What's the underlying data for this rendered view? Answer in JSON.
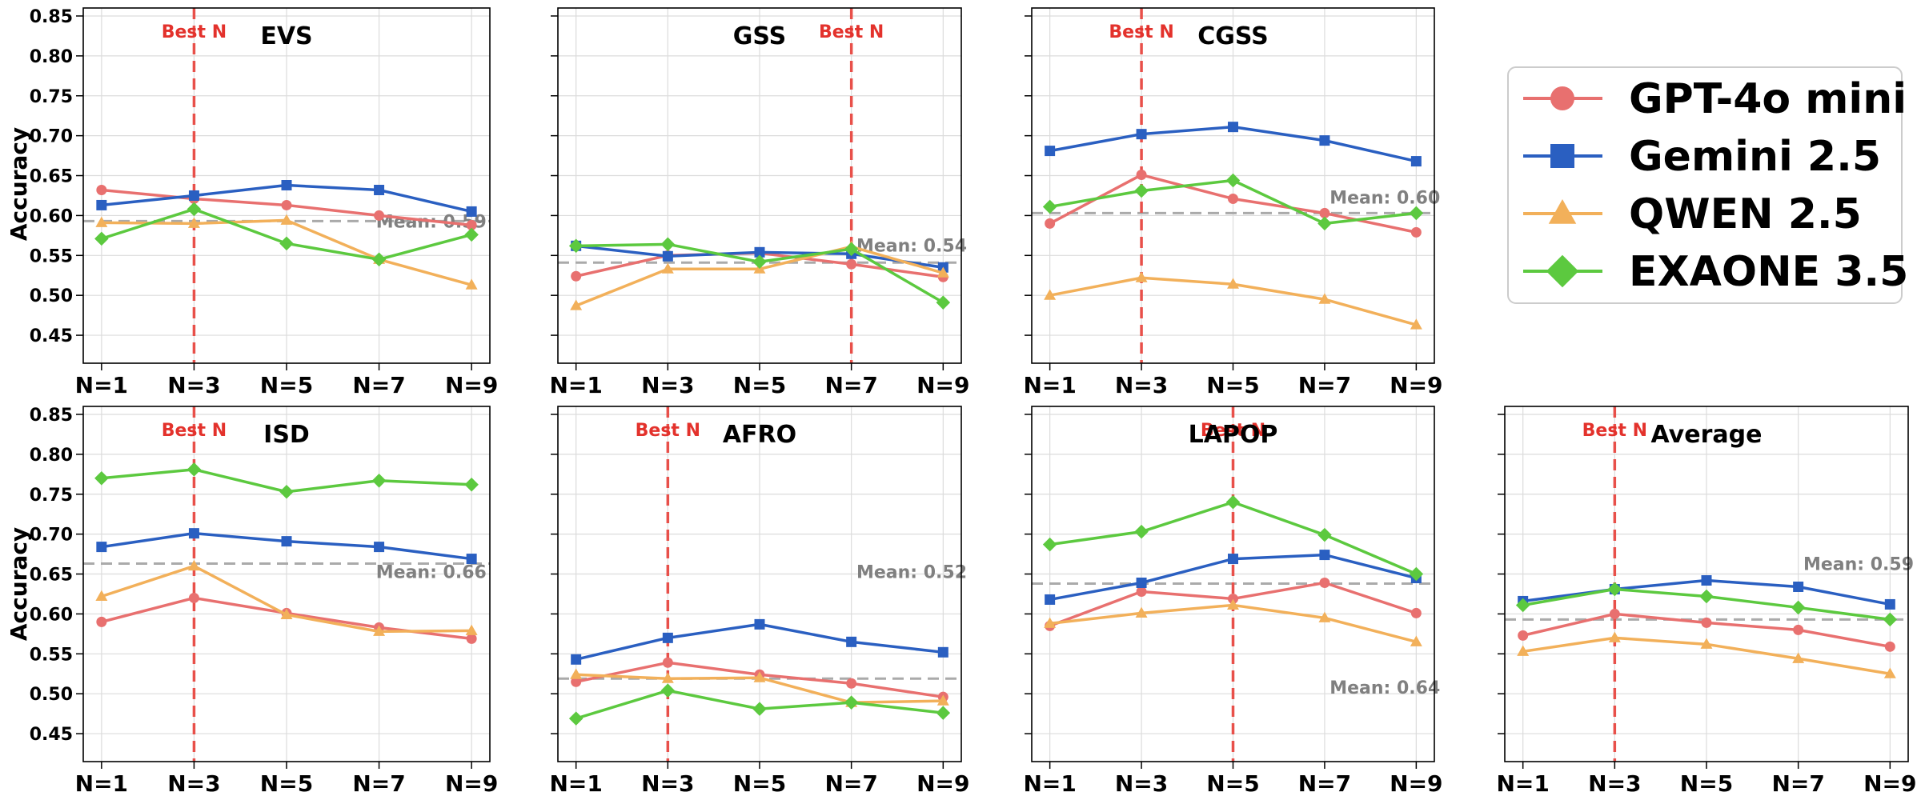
{
  "chart_data": {
    "type": "line",
    "ylabel": "Accuracy",
    "categories": [
      "N=1",
      "N=3",
      "N=5",
      "N=7",
      "N=9"
    ],
    "ylim": [
      0.415,
      0.86
    ],
    "yticks": [
      "0.45",
      "0.50",
      "0.55",
      "0.60",
      "0.65",
      "0.70",
      "0.75",
      "0.80",
      "0.85"
    ],
    "ytick_values": [
      0.45,
      0.5,
      0.55,
      0.6,
      0.65,
      0.7,
      0.75,
      0.8,
      0.85
    ],
    "grid": true,
    "best_label": "Best N",
    "colors": {
      "gpt": "#e8706f",
      "gemini": "#2a5fc1",
      "qwen": "#f2b05a",
      "exaone": "#5cc93f",
      "best_line": "#e8504a",
      "mean_line": "#aaaaaa"
    },
    "legend": [
      {
        "name": "GPT-4o mini",
        "marker": "circle",
        "color": "#e8706f"
      },
      {
        "name": "Gemini 2.5",
        "marker": "square",
        "color": "#2a5fc1"
      },
      {
        "name": "QWEN 2.5",
        "marker": "triangle",
        "color": "#f2b05a"
      },
      {
        "name": "EXAONE 3.5",
        "marker": "diamond",
        "color": "#5cc93f"
      }
    ],
    "panels": [
      {
        "title": "EVS",
        "best_n": "N=3",
        "mean": 0.593,
        "mean_label": "Mean: 0.59",
        "series": [
          {
            "name": "GPT-4o mini",
            "values": [
              0.632,
              0.621,
              0.613,
              0.6,
              0.588
            ]
          },
          {
            "name": "Gemini 2.5",
            "values": [
              0.613,
              0.625,
              0.638,
              0.632,
              0.605
            ]
          },
          {
            "name": "QWEN 2.5",
            "values": [
              0.591,
              0.59,
              0.594,
              0.545,
              0.513
            ]
          },
          {
            "name": "EXAONE 3.5",
            "values": [
              0.571,
              0.608,
              0.565,
              0.545,
              0.576
            ]
          }
        ]
      },
      {
        "title": "GSS",
        "best_n": "N=7",
        "mean": 0.541,
        "mean_label": "Mean: 0.54",
        "series": [
          {
            "name": "GPT-4o mini",
            "values": [
              0.524,
              0.55,
              0.553,
              0.539,
              0.523
            ]
          },
          {
            "name": "Gemini 2.5",
            "values": [
              0.562,
              0.549,
              0.554,
              0.552,
              0.535
            ]
          },
          {
            "name": "QWEN 2.5",
            "values": [
              0.487,
              0.533,
              0.533,
              0.561,
              0.528
            ]
          },
          {
            "name": "EXAONE 3.5",
            "values": [
              0.562,
              0.564,
              0.542,
              0.558,
              0.491
            ]
          }
        ]
      },
      {
        "title": "CGSS",
        "best_n": "N=3",
        "mean": 0.603,
        "mean_label": "Mean: 0.60",
        "series": [
          {
            "name": "GPT-4o mini",
            "values": [
              0.59,
              0.651,
              0.621,
              0.603,
              0.579
            ]
          },
          {
            "name": "Gemini 2.5",
            "values": [
              0.681,
              0.702,
              0.711,
              0.694,
              0.668
            ]
          },
          {
            "name": "QWEN 2.5",
            "values": [
              0.5,
              0.522,
              0.514,
              0.495,
              0.463
            ]
          },
          {
            "name": "EXAONE 3.5",
            "values": [
              0.611,
              0.631,
              0.644,
              0.59,
              0.603
            ]
          }
        ]
      },
      {
        "title": "ISD",
        "best_n": "N=3",
        "mean": 0.663,
        "mean_label": "Mean: 0.66",
        "series": [
          {
            "name": "GPT-4o mini",
            "values": [
              0.59,
              0.62,
              0.601,
              0.583,
              0.569
            ]
          },
          {
            "name": "Gemini 2.5",
            "values": [
              0.684,
              0.701,
              0.691,
              0.684,
              0.669
            ]
          },
          {
            "name": "QWEN 2.5",
            "values": [
              0.622,
              0.66,
              0.599,
              0.578,
              0.579
            ]
          },
          {
            "name": "EXAONE 3.5",
            "values": [
              0.77,
              0.781,
              0.753,
              0.767,
              0.762
            ]
          }
        ]
      },
      {
        "title": "AFRO",
        "best_n": "N=3",
        "mean": 0.519,
        "mean_label": "Mean: 0.52",
        "series": [
          {
            "name": "GPT-4o mini",
            "values": [
              0.515,
              0.539,
              0.524,
              0.513,
              0.496
            ]
          },
          {
            "name": "Gemini 2.5",
            "values": [
              0.543,
              0.57,
              0.587,
              0.565,
              0.552
            ]
          },
          {
            "name": "QWEN 2.5",
            "values": [
              0.524,
              0.519,
              0.52,
              0.489,
              0.491
            ]
          },
          {
            "name": "EXAONE 3.5",
            "values": [
              0.469,
              0.504,
              0.481,
              0.489,
              0.476
            ]
          }
        ]
      },
      {
        "title": "LAPOP",
        "best_n": "N=5",
        "mean": 0.638,
        "mean_label": "Mean: 0.64",
        "series": [
          {
            "name": "GPT-4o mini",
            "values": [
              0.585,
              0.628,
              0.619,
              0.639,
              0.601
            ]
          },
          {
            "name": "Gemini 2.5",
            "values": [
              0.618,
              0.639,
              0.669,
              0.674,
              0.645
            ]
          },
          {
            "name": "QWEN 2.5",
            "values": [
              0.588,
              0.601,
              0.611,
              0.595,
              0.565
            ]
          },
          {
            "name": "EXAONE 3.5",
            "values": [
              0.687,
              0.703,
              0.74,
              0.699,
              0.65
            ]
          }
        ]
      },
      {
        "title": "Average",
        "best_n": "N=3",
        "mean": 0.593,
        "mean_label": "Mean: 0.59",
        "series": [
          {
            "name": "GPT-4o mini",
            "values": [
              0.573,
              0.6,
              0.589,
              0.58,
              0.559
            ]
          },
          {
            "name": "Gemini 2.5",
            "values": [
              0.616,
              0.631,
              0.642,
              0.634,
              0.612
            ]
          },
          {
            "name": "QWEN 2.5",
            "values": [
              0.553,
              0.57,
              0.562,
              0.544,
              0.525
            ]
          },
          {
            "name": "EXAONE 3.5",
            "values": [
              0.611,
              0.631,
              0.622,
              0.608,
              0.593
            ]
          }
        ]
      }
    ]
  }
}
